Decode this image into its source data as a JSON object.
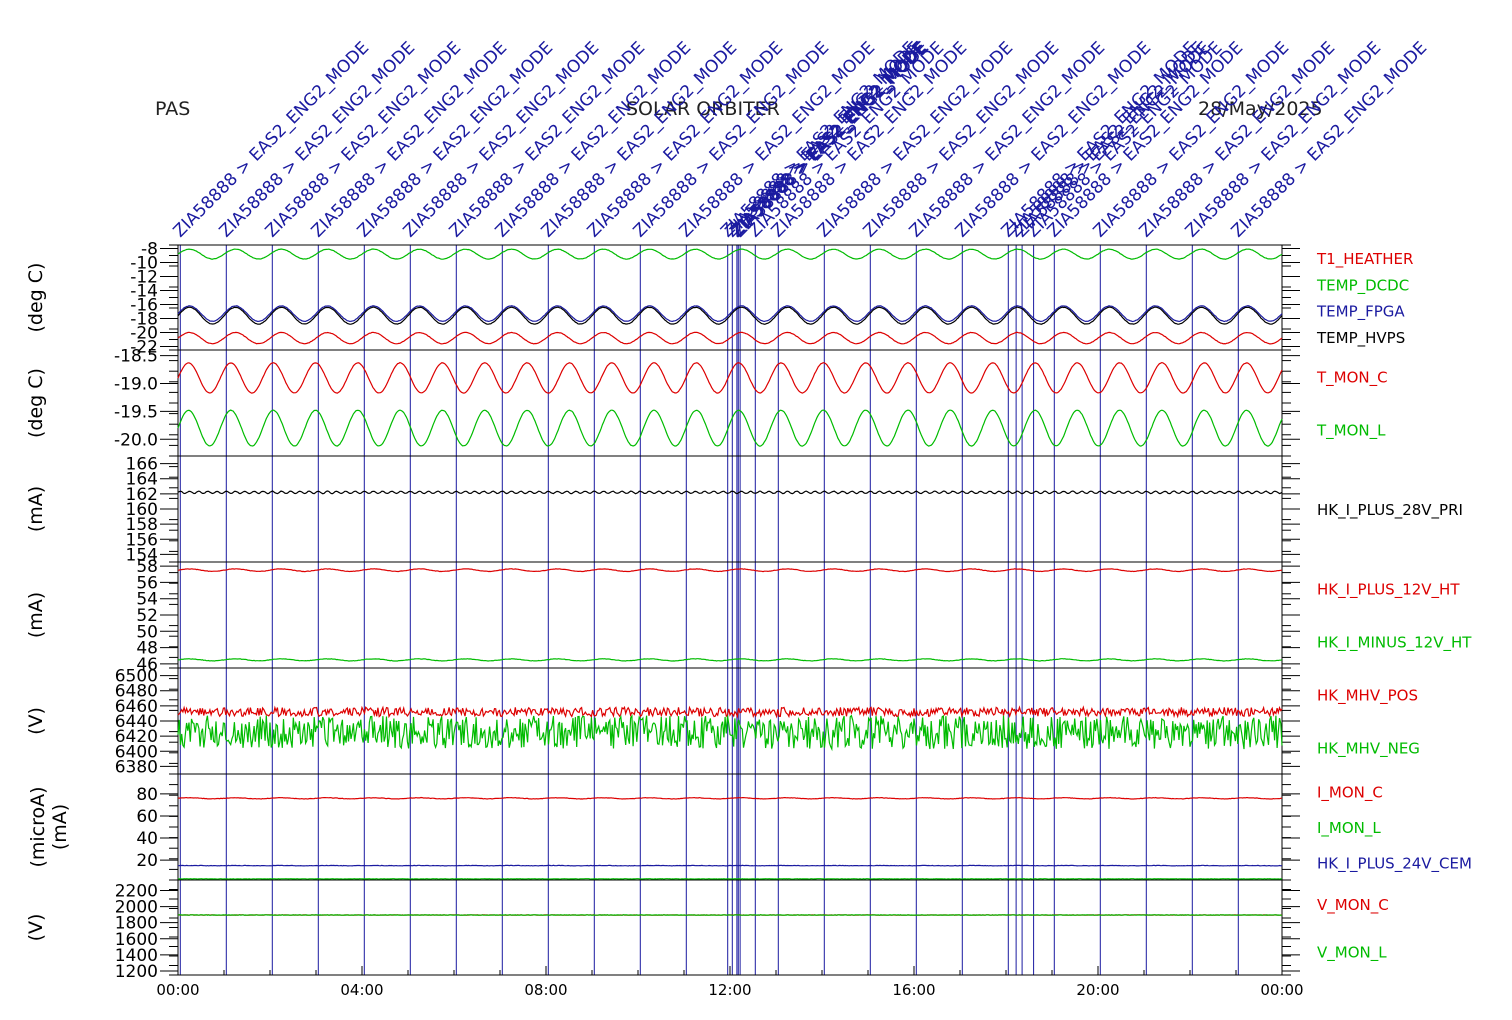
{
  "header": {
    "instrument": "PAS",
    "mission": "SOLAR ORBITER",
    "date": "28/May/2025"
  },
  "colors": {
    "red": "#dd0000",
    "green": "#00bb00",
    "blue": "#1a1aa0",
    "black": "#000000",
    "event_line": "#1a1aa0"
  },
  "events": {
    "label": "ZIA58888 > EAS2_ENG2_MODE",
    "times_hours": [
      0.05,
      1.05,
      2.05,
      3.05,
      4.05,
      5.05,
      6.05,
      7.05,
      8.05,
      9.05,
      10.05,
      11.05,
      11.95,
      12.05,
      12.15,
      12.18,
      12.22,
      12.55,
      13.05,
      14.05,
      15.05,
      16.05,
      17.05,
      18.05,
      18.22,
      18.35,
      18.6,
      19.05,
      20.05,
      21.05,
      22.05,
      23.05
    ]
  },
  "chart_data": [
    {
      "type": "line",
      "ylabel": "(deg C)",
      "ylim": [
        -22.5,
        -7.5
      ],
      "yticks": [
        -22,
        -20,
        -18,
        -16,
        -14,
        -12,
        -10,
        -8
      ],
      "series": [
        {
          "name": "T1_HEATHER",
          "color": "#dd0000",
          "base": -20.8,
          "amp": 0.8,
          "period_h": 1.0
        },
        {
          "name": "TEMP_DCDC",
          "color": "#00bb00",
          "base": -8.8,
          "amp": 0.7,
          "period_h": 1.0
        },
        {
          "name": "TEMP_FPGA",
          "color": "#1a1aa0",
          "base": -17.3,
          "amp": 1.1,
          "period_h": 1.0
        },
        {
          "name": "TEMP_HVPS",
          "color": "#000000",
          "base": -17.6,
          "amp": 1.2,
          "period_h": 1.0
        }
      ]
    },
    {
      "type": "line",
      "ylabel": "(deg C)",
      "ylim": [
        -20.3,
        -18.4
      ],
      "yticks": [
        -20.0,
        -19.5,
        -19.0,
        -18.5
      ],
      "ytick_labels": [
        "-20.0",
        "-19.5",
        "-19.0",
        "-18.5"
      ],
      "series": [
        {
          "name": "T_MON_C",
          "color": "#dd0000",
          "base": -18.9,
          "amp": 0.27,
          "period_h": 0.92
        },
        {
          "name": "T_MON_L",
          "color": "#00bb00",
          "base": -19.8,
          "amp": 0.32,
          "period_h": 0.92
        }
      ]
    },
    {
      "type": "line",
      "ylabel": "(mA)",
      "ylim": [
        153,
        167
      ],
      "yticks": [
        154,
        156,
        158,
        160,
        162,
        164,
        166
      ],
      "series": [
        {
          "name": "HK_I_PLUS_28V_PRI",
          "color": "#000000",
          "base": 162.2,
          "amp": 0.15,
          "period_h": 0.2
        }
      ]
    },
    {
      "type": "line",
      "ylabel": "(mA)",
      "ylim": [
        45.5,
        58.5
      ],
      "yticks": [
        46,
        48,
        50,
        52,
        54,
        56,
        58
      ],
      "series": [
        {
          "name": "HK_I_PLUS_12V_HT",
          "color": "#dd0000",
          "base": 57.5,
          "amp": 0.15,
          "period_h": 1.0
        },
        {
          "name": "HK_I_MINUS_12V_HT",
          "color": "#00bb00",
          "base": 46.5,
          "amp": 0.12,
          "period_h": 1.0
        }
      ]
    },
    {
      "type": "line",
      "ylabel": "(V)",
      "ylim": [
        6370,
        6510
      ],
      "yticks": [
        6380,
        6400,
        6420,
        6440,
        6460,
        6480,
        6500
      ],
      "series": [
        {
          "name": "HK_MHV_POS",
          "color": "#dd0000",
          "base": 6452,
          "amp": 6,
          "period_h": 0.05
        },
        {
          "name": "HK_MHV_NEG",
          "color": "#00bb00",
          "base": 6425,
          "amp": 22,
          "period_h": 0.05
        }
      ]
    },
    {
      "type": "line",
      "ylabel": "(microA)",
      "ylabel2": "(mA)",
      "ylim": [
        2,
        98
      ],
      "yticks": [
        20,
        40,
        60,
        80
      ],
      "series": [
        {
          "name": "I_MON_C",
          "color": "#dd0000",
          "base": 76,
          "amp": 0.5,
          "period_h": 1.0
        },
        {
          "name": "I_MON_L",
          "color": "#00bb00",
          "base": 3,
          "amp": 0.0,
          "period_h": 1.0
        },
        {
          "name": "HK_I_PLUS_24V_CEM",
          "color": "#1a1aa0",
          "base": 15,
          "amp": 0.1,
          "period_h": 1.0
        }
      ]
    },
    {
      "type": "line",
      "ylabel": "(V)",
      "ylim": [
        1150,
        2330
      ],
      "yticks": [
        1200,
        1400,
        1600,
        1800,
        2000,
        2200
      ],
      "series": [
        {
          "name": "V_MON_C",
          "color": "#dd0000",
          "base": 1895,
          "amp": 0.0,
          "period_h": 1.0
        },
        {
          "name": "V_MON_L",
          "color": "#00bb00",
          "base": 1895,
          "amp": 0.0,
          "period_h": 1.0
        }
      ]
    }
  ],
  "xaxis": {
    "xlim_hours": [
      0,
      24
    ],
    "tick_hours": [
      0,
      4,
      8,
      12,
      16,
      20,
      24
    ],
    "tick_labels": [
      "00:00",
      "04:00",
      "08:00",
      "12:00",
      "16:00",
      "20:00",
      "00:00"
    ]
  }
}
